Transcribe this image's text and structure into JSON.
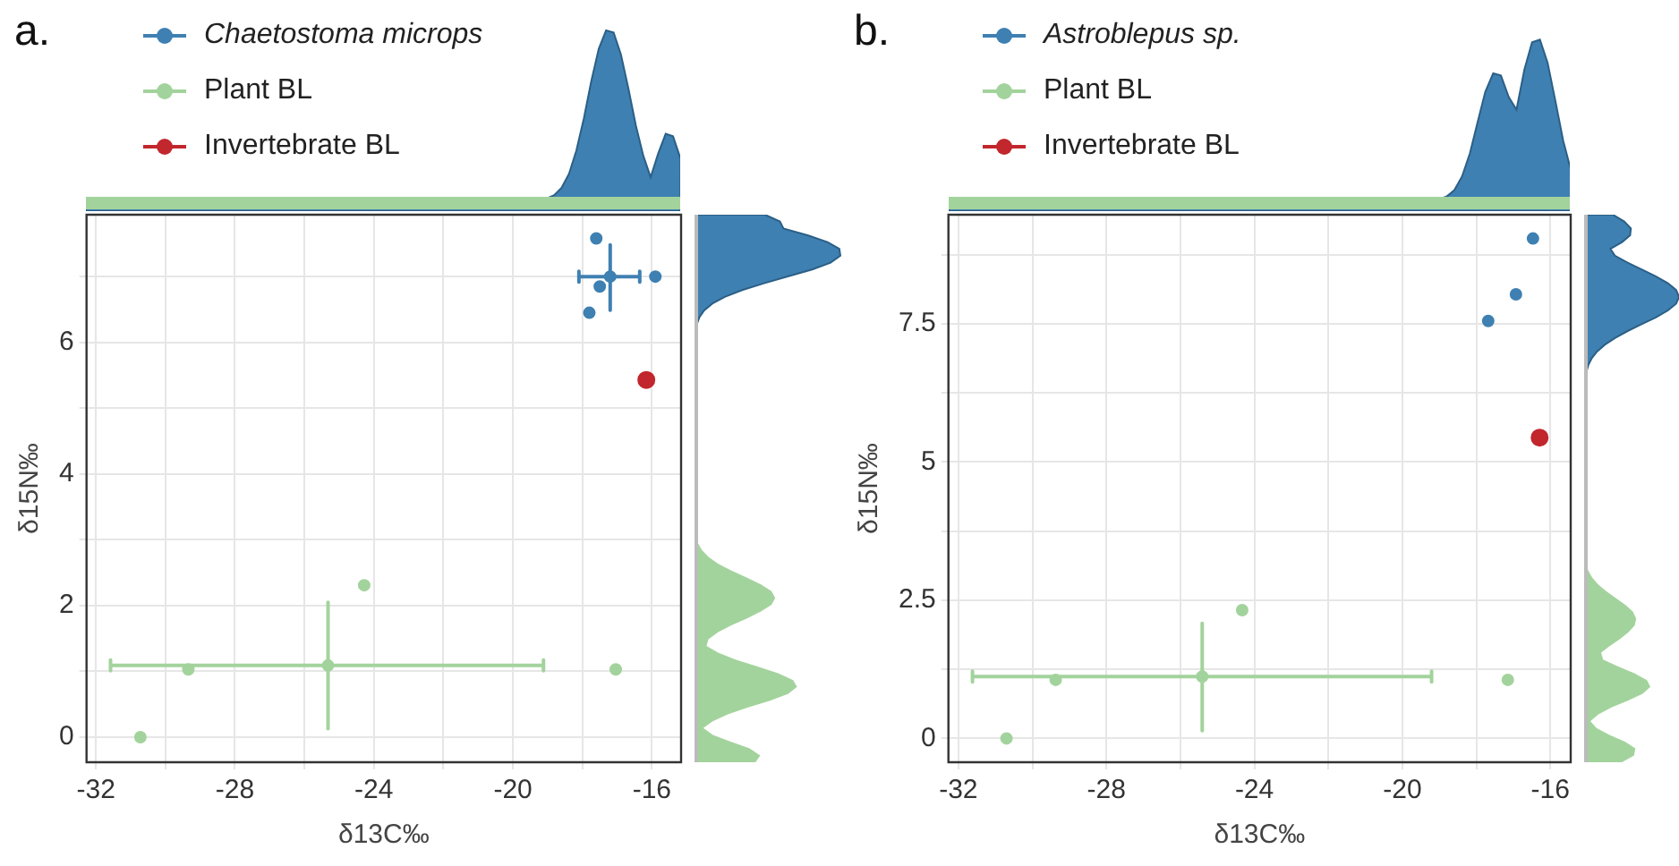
{
  "chart_data": [
    {
      "type": "scatter",
      "title": "a.",
      "xlabel": "δ13C‰",
      "ylabel": "δ15N‰",
      "xlim": [
        -32.27,
        -15.16
      ],
      "ylim": [
        -0.38,
        7.94
      ],
      "xticks": [
        -32,
        {
          "value": -30,
          "label": null
        },
        -28,
        {
          "value": -26,
          "label": null
        },
        -24,
        {
          "value": -22,
          "label": null
        },
        -20,
        {
          "value": -18,
          "label": null
        },
        -16
      ],
      "yticks": [
        0,
        {
          "value": 1,
          "label": null
        },
        2,
        {
          "value": 3,
          "label": null
        },
        4,
        {
          "value": 5,
          "label": null
        },
        6,
        {
          "value": 7,
          "label": null
        }
      ],
      "grid": true,
      "legend": "top left",
      "marker": "circle",
      "series": [
        {
          "name": "Chaetostoma microps",
          "color": "#3f80b2",
          "x": [
            -17.6,
            -15.9,
            -17.8,
            -17.5,
            -17.2
          ],
          "values": [
            7.58,
            7.0,
            6.45,
            6.85,
            7.0
          ],
          "errors": [
            null,
            null,
            null,
            null,
            [
              6.49,
              7.48
            ]
          ],
          "xerrors": [
            null,
            null,
            null,
            null,
            [
              -18.1,
              -16.35
            ]
          ]
        },
        {
          "name": "Plant BL",
          "color": "#a3d39c",
          "x": [
            -24.28,
            -29.34,
            -30.72,
            -17.04,
            -25.32
          ],
          "values": [
            2.31,
            1.03,
            0,
            1.03,
            1.09
          ],
          "errors": [
            null,
            null,
            null,
            null,
            [
              0.13,
              2.05
            ]
          ],
          "xerrors": [
            null,
            null,
            null,
            null,
            [
              -31.58,
              -19.12
            ]
          ]
        },
        {
          "name": "Invertebrate BL",
          "color": "#c1272d",
          "x": [
            -16.16
          ],
          "values": [
            5.43
          ]
        }
      ]
    },
    {
      "type": "scatter",
      "title": "b.",
      "xlabel": "δ13C‰",
      "ylabel": "δ15N‰",
      "xlim": [
        -32.27,
        -15.45
      ],
      "ylim": [
        -0.43,
        9.47
      ],
      "xticks": [
        -32,
        {
          "value": -30,
          "label": null
        },
        -28,
        {
          "value": -26,
          "label": null
        },
        -24,
        {
          "value": -22,
          "label": null
        },
        -20,
        {
          "value": -18,
          "label": null
        },
        -16
      ],
      "yticks": [
        0,
        {
          "value": 1.25,
          "label": null
        },
        2.5,
        {
          "value": 3.75,
          "label": null
        },
        5,
        {
          "value": 6.25,
          "label": null
        },
        7.5,
        {
          "value": 8.75,
          "label": null
        }
      ],
      "grid": true,
      "legend": "top left",
      "marker": "circle",
      "series": [
        {
          "name": "Astroblepus sp.",
          "color": "#3f80b2",
          "x": [
            -16.47,
            -16.93,
            -17.68
          ],
          "values": [
            9.04,
            8.03,
            7.55
          ]
        },
        {
          "name": "Plant BL",
          "color": "#a3d39c",
          "x": [
            -24.33,
            -29.37,
            -30.7,
            -17.15,
            -25.41
          ],
          "values": [
            2.32,
            1.06,
            0,
            1.06,
            1.12
          ],
          "errors": [
            null,
            null,
            null,
            null,
            [
              0.14,
              2.08
            ]
          ],
          "xerrors": [
            null,
            null,
            null,
            null,
            [
              -31.62,
              -19.21
            ]
          ]
        },
        {
          "name": "Invertebrate BL",
          "color": "#c1272d",
          "x": [
            -16.29
          ],
          "values": [
            5.44
          ]
        }
      ]
    }
  ]
}
